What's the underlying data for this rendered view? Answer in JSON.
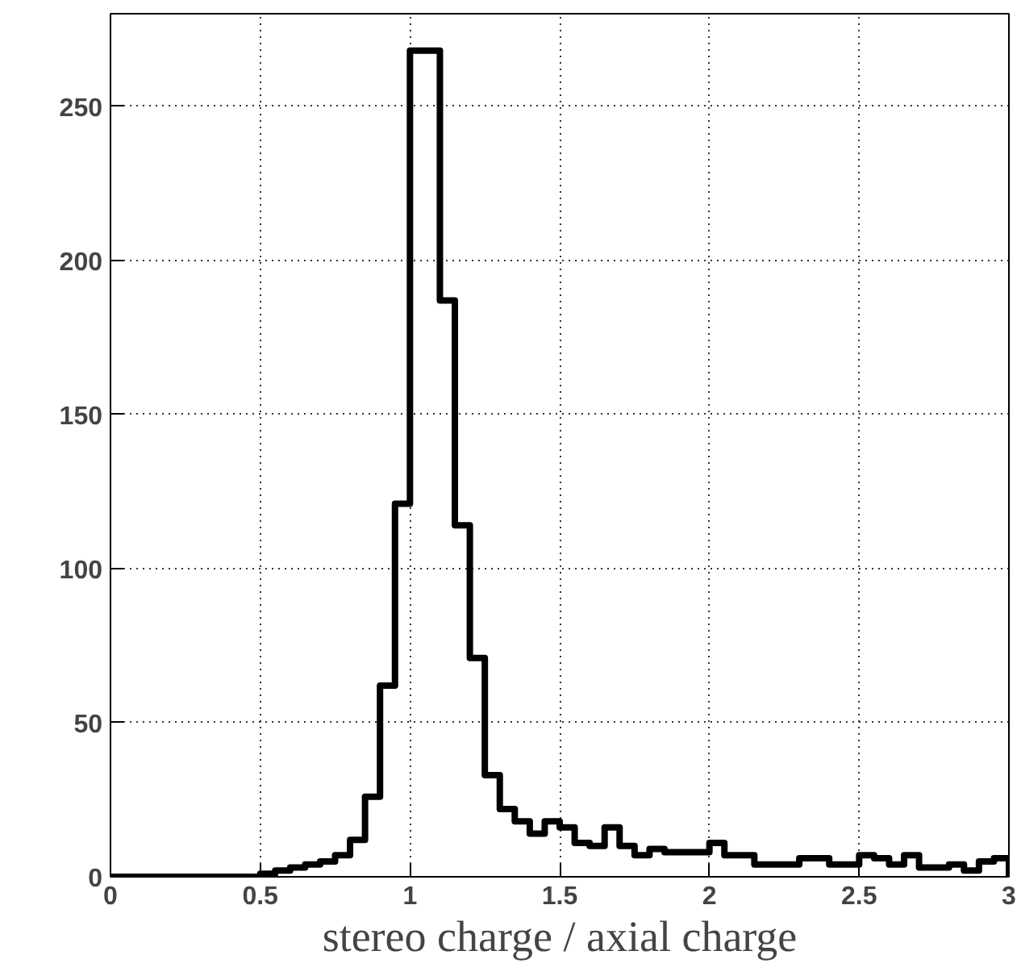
{
  "chart_data": {
    "type": "histogram",
    "xlabel": "stereo charge / axial charge",
    "bins": [
      0,
      0.05,
      0.1,
      0.15,
      0.2,
      0.25,
      0.3,
      0.35,
      0.4,
      0.45,
      0.5,
      0.55,
      0.6,
      0.65,
      0.7,
      0.75,
      0.8,
      0.85,
      0.9,
      0.95,
      1.0,
      1.05,
      1.1,
      1.15,
      1.2,
      1.25,
      1.3,
      1.35,
      1.4,
      1.45,
      1.5,
      1.55,
      1.6,
      1.65,
      1.7,
      1.75,
      1.8,
      1.85,
      1.9,
      1.95,
      2.0,
      2.05,
      2.1,
      2.15,
      2.2,
      2.25,
      2.3,
      2.35,
      2.4,
      2.45,
      2.5,
      2.55,
      2.6,
      2.65,
      2.7,
      2.75,
      2.8,
      2.85,
      2.9,
      2.95,
      3.0
    ],
    "values": [
      0,
      0,
      0,
      0,
      0,
      0,
      0,
      0,
      0,
      0,
      1,
      2,
      3,
      4,
      5,
      7,
      12,
      26,
      62,
      121,
      268,
      268,
      187,
      114,
      71,
      33,
      22,
      18,
      14,
      18,
      16,
      11,
      10,
      16,
      10,
      7,
      9,
      8,
      8,
      8,
      11,
      7,
      7,
      4,
      4,
      4,
      6,
      6,
      4,
      4,
      7,
      6,
      4,
      7,
      3,
      3,
      4,
      2,
      5,
      6
    ],
    "color": "#000000",
    "xlim": [
      0,
      3
    ],
    "xticks": [
      0,
      0.5,
      1,
      1.5,
      2,
      2.5,
      3
    ],
    "ylim": [
      0,
      280
    ],
    "yticks": [
      0,
      50,
      100,
      150,
      200,
      250
    ],
    "grid": true,
    "line_style": "solid"
  }
}
